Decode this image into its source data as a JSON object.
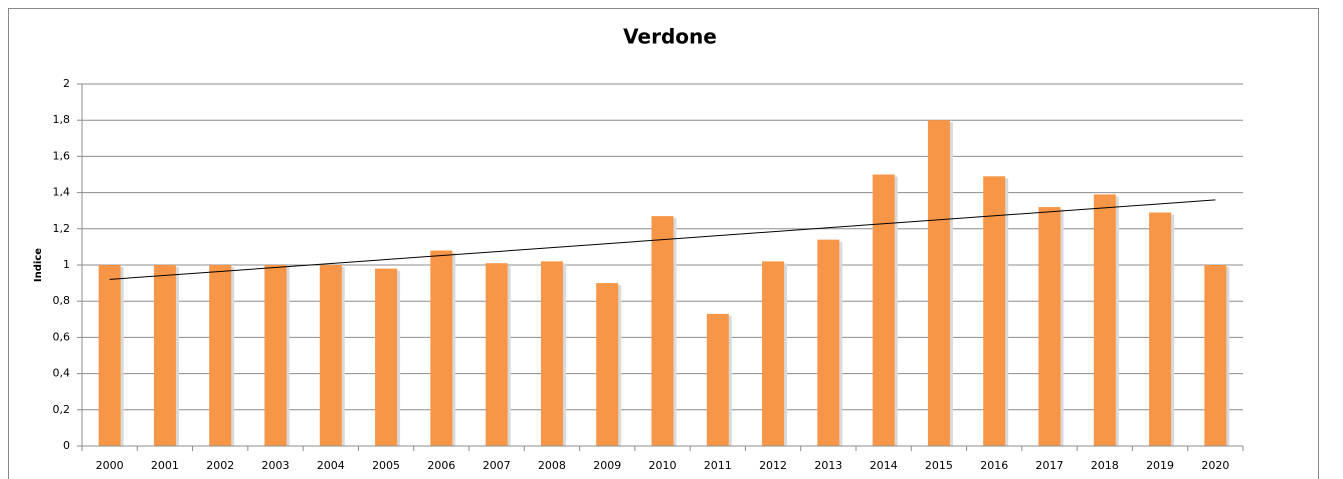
{
  "chart_data": {
    "type": "bar",
    "title": "Verdone",
    "y_label": "Indice",
    "categories": [
      "2000",
      "2001",
      "2002",
      "2003",
      "2004",
      "2005",
      "2006",
      "2007",
      "2008",
      "2009",
      "2010",
      "2011",
      "2012",
      "2013",
      "2014",
      "2015",
      "2016",
      "2017",
      "2018",
      "2019",
      "2020"
    ],
    "values": [
      1.0,
      1.0,
      1.0,
      1.0,
      1.0,
      0.98,
      1.08,
      1.01,
      1.02,
      0.9,
      1.27,
      0.73,
      1.02,
      1.14,
      1.5,
      1.8,
      1.49,
      1.32,
      1.39,
      1.29,
      1.0
    ],
    "color": "#f79646",
    "trendline": "linear",
    "grid": true,
    "ylim": [
      0,
      2
    ],
    "yticks": [
      0,
      {
        "value": 0.2,
        "label": "0,2"
      },
      {
        "value": 0.4,
        "label": "0,4"
      },
      {
        "value": 0.6,
        "label": "0,6"
      },
      {
        "value": 0.8,
        "label": "0,8"
      },
      1,
      {
        "value": 1.2,
        "label": "1,2"
      },
      {
        "value": 1.4,
        "label": "1,4"
      },
      {
        "value": 1.6,
        "label": "1,6"
      },
      {
        "value": 1.8,
        "label": "1,8"
      },
      2
    ]
  }
}
